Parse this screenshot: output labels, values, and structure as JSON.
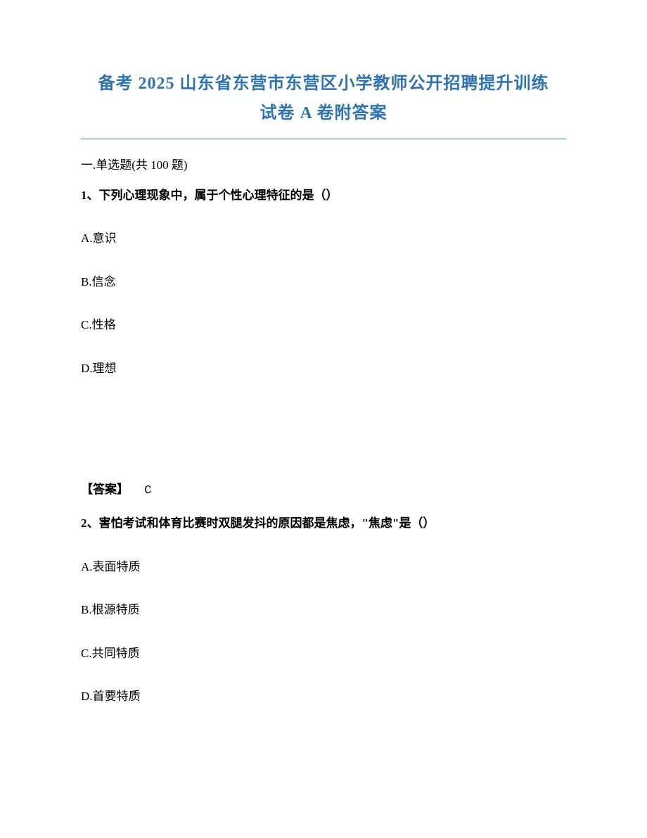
{
  "title": {
    "line1": "备考 2025 山东省东营市东营区小学教师公开招聘提升训练",
    "line2": "试卷 A 卷附答案",
    "color": "#2e74b5",
    "fontsize": 24
  },
  "section": {
    "heading": "一.单选题(共 100 题)"
  },
  "q1": {
    "stem": "1、下列心理现象中，属于个性心理特征的是（）",
    "options": {
      "a": "A.意识",
      "b": "B.信念",
      "c": "C.性格",
      "d": "D.理想"
    },
    "answer_label": "【答案】",
    "answer_value": "C"
  },
  "q2": {
    "stem": "2、害怕考试和体育比赛时双腿发抖的原因都是焦虑，\"焦虑\"是（）",
    "options": {
      "a": "A.表面特质",
      "b": "B.根源特质",
      "c": "C.共同特质",
      "d": "D.首要特质"
    }
  },
  "style": {
    "body_text_color": "#000000",
    "body_fontsize": 17,
    "background_color": "#ffffff",
    "option_spacing": 36
  }
}
